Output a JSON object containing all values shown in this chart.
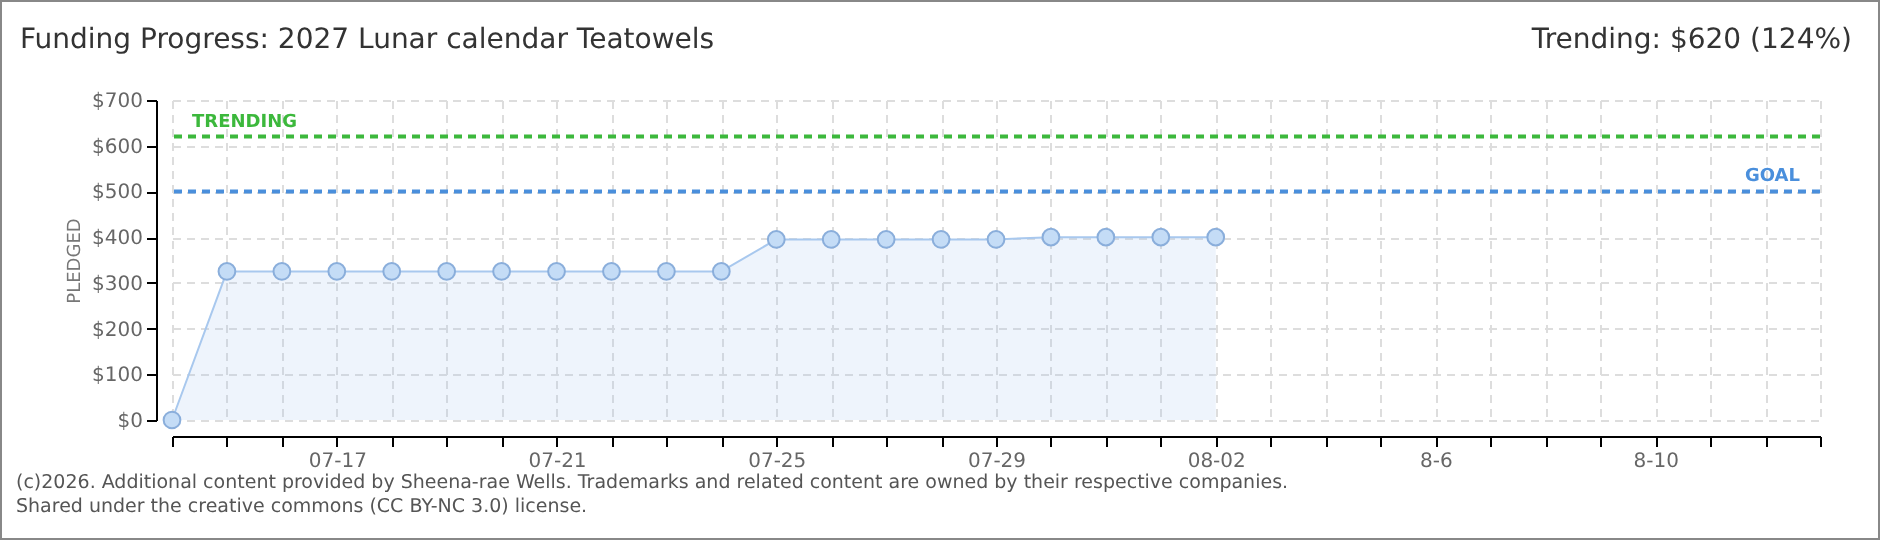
{
  "chart_data": {
    "type": "area",
    "title": "Funding Progress: 2027 Lunar calendar Teatowels",
    "subtitle": "Trending: $620 (124%)",
    "ylabel": "PLEDGED",
    "categories": [
      null,
      null,
      null,
      "07-17",
      null,
      null,
      null,
      "07-21",
      null,
      null,
      null,
      "07-25",
      null,
      null,
      null,
      "07-29",
      null,
      null,
      null,
      "08-02",
      null,
      null,
      null,
      "8-6",
      null,
      null,
      null,
      "8-10",
      null,
      null,
      null
    ],
    "series": [
      {
        "color": "#a8c8ee",
        "values": [
          0,
          325,
          325,
          325,
          325,
          325,
          325,
          325,
          325,
          325,
          325,
          395,
          395,
          395,
          395,
          395,
          400,
          400,
          400,
          400,
          null,
          null,
          null,
          null,
          null,
          null,
          null,
          null,
          null,
          null,
          null
        ]
      }
    ],
    "ylim": [
      0,
      700
    ],
    "yticks": [
      {
        "value": 0,
        "label": "$0"
      },
      {
        "value": 100,
        "label": "$100"
      },
      {
        "value": 200,
        "label": "$200"
      },
      {
        "value": 300,
        "label": "$300"
      },
      {
        "value": 400,
        "label": "$400"
      },
      {
        "value": 500,
        "label": "$500"
      },
      {
        "value": 600,
        "label": "$600"
      },
      {
        "value": 700,
        "label": "$700"
      }
    ],
    "ref_lines": [
      {
        "axis": "y",
        "value": 620,
        "label": "TRENDING",
        "color": "#3cb83c",
        "line_style": "dashed"
      },
      {
        "axis": "y",
        "value": 500,
        "label": "GOAL",
        "color": "#4a8fdc",
        "line_style": "dashed"
      }
    ],
    "grid": true,
    "marker": "circle",
    "annotations": [
      "(c)2026. Additional content provided by Sheena-rae Wells. Trademarks and related content are owned by their respective companies.",
      "Shared under the creative commons (CC BY-NC 3.0) license."
    ]
  }
}
